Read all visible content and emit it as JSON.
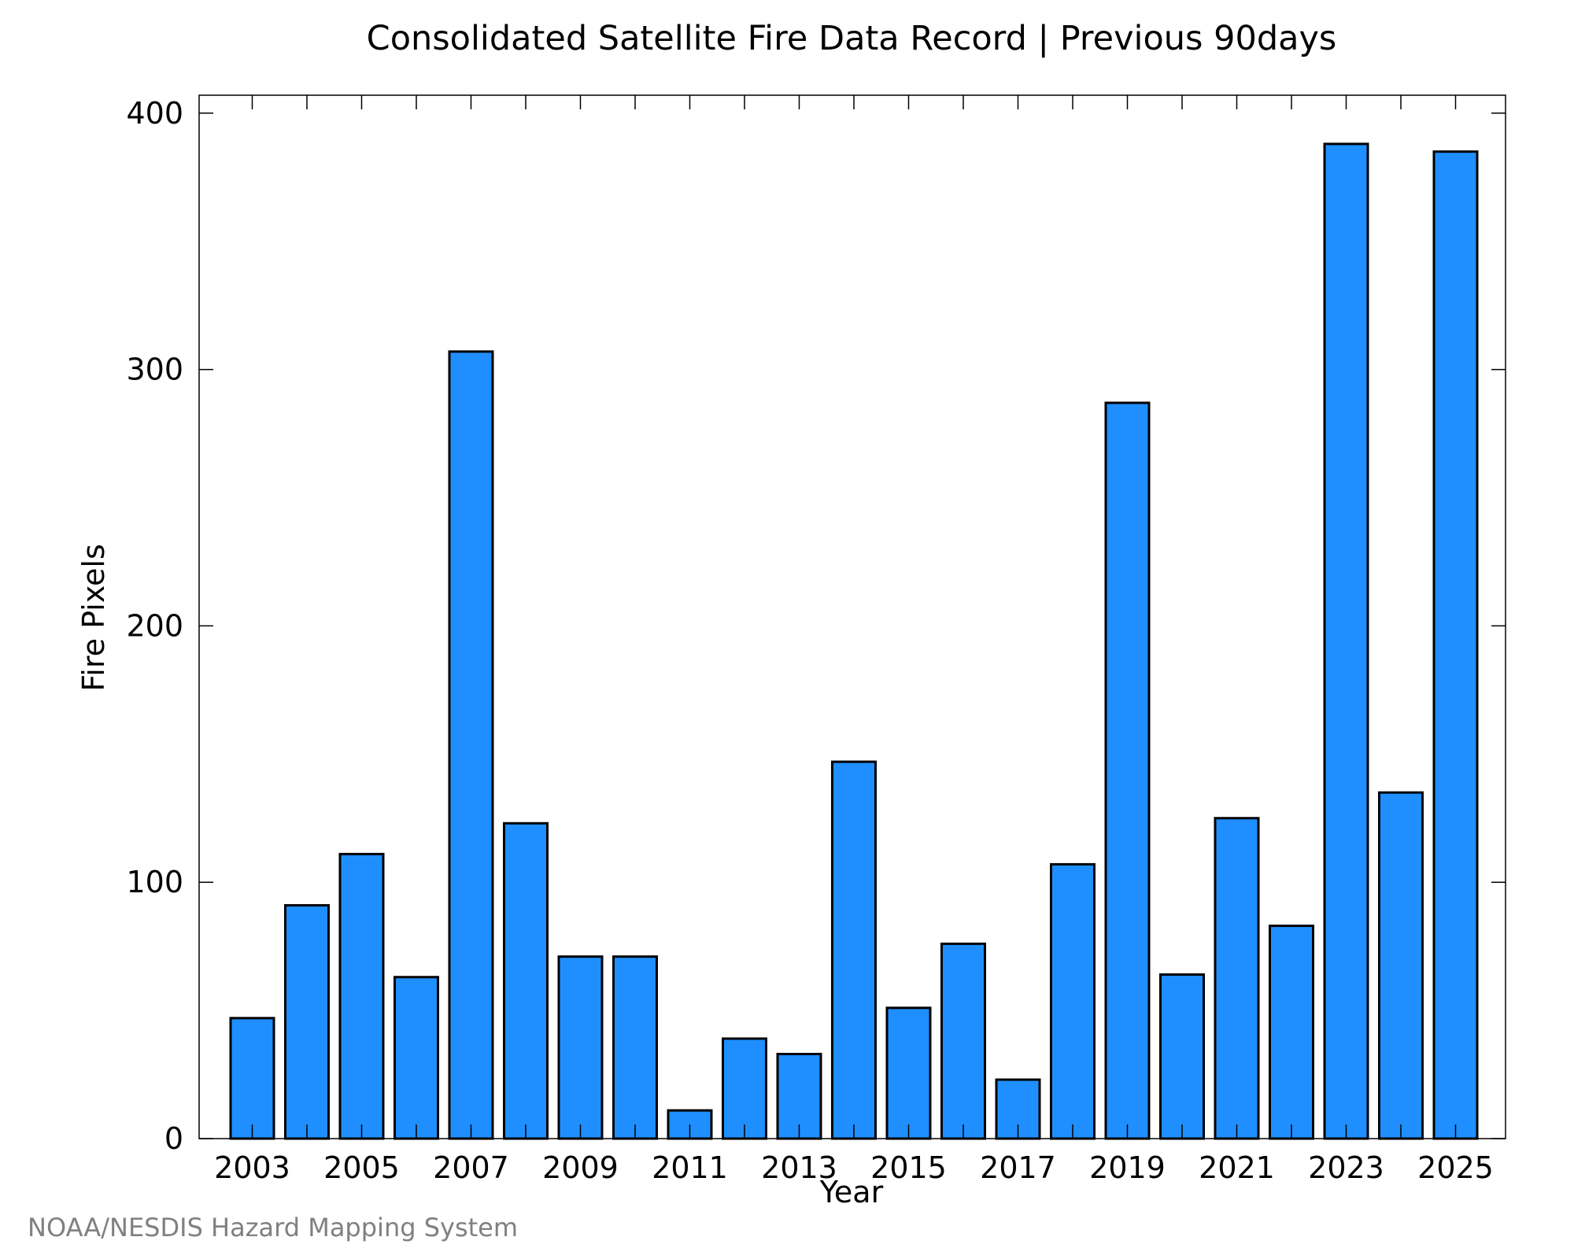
{
  "chart_data": {
    "type": "bar",
    "title": "Consolidated Satellite Fire Data Record | Previous 90days",
    "xlabel": "Year",
    "ylabel": "Fire Pixels",
    "credit": "NOAA/NESDIS Hazard Mapping System",
    "categories": [
      "2003",
      "2004",
      "2005",
      "2006",
      "2007",
      "2008",
      "2009",
      "2010",
      "2011",
      "2012",
      "2013",
      "2014",
      "2015",
      "2016",
      "2017",
      "2018",
      "2019",
      "2020",
      "2021",
      "2022",
      "2023",
      "2024",
      "2025"
    ],
    "values": [
      47,
      91,
      111,
      63,
      307,
      123,
      71,
      71,
      11,
      39,
      33,
      147,
      51,
      76,
      23,
      107,
      287,
      64,
      125,
      83,
      388,
      135,
      385
    ],
    "x_tick_labels": [
      "2003",
      "2005",
      "2007",
      "2009",
      "2011",
      "2013",
      "2015",
      "2017",
      "2019",
      "2021",
      "2023",
      "2025"
    ],
    "y_ticks": [
      0,
      100,
      200,
      300,
      400
    ],
    "ylim": [
      0,
      407
    ],
    "grid": false,
    "colors": {
      "bar_fill": "#1f8fff",
      "bar_stroke": "#000000",
      "credit_text": "#808080"
    }
  }
}
